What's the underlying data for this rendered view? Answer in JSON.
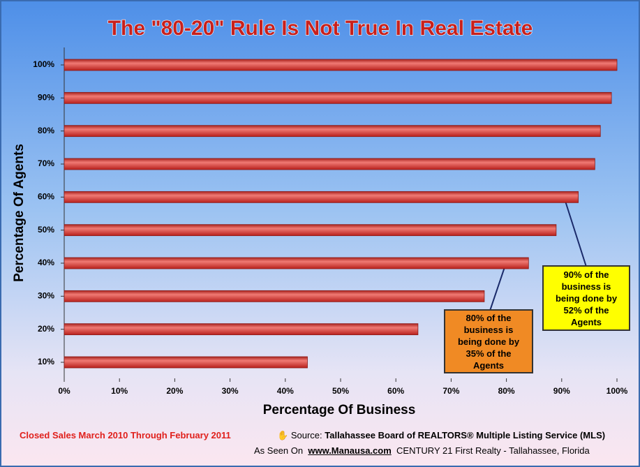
{
  "chart_data": {
    "type": "bar",
    "orientation": "horizontal",
    "title": "The \"80-20\" Rule Is Not True In Real Estate",
    "x_label": "Percentage Of Business",
    "y_label": "Percentage Of Agents",
    "categories": [
      "10%",
      "20%",
      "30%",
      "40%",
      "50%",
      "60%",
      "70%",
      "80%",
      "90%",
      "100%"
    ],
    "values": [
      44,
      64,
      76,
      84,
      89,
      93,
      96,
      97,
      99,
      100
    ],
    "color": "#d9403c",
    "xlim": [
      0,
      100
    ],
    "xticks": [
      {
        "value": 0,
        "label": "0%"
      },
      {
        "value": 10,
        "label": "10%"
      },
      {
        "value": 20,
        "label": "20%"
      },
      {
        "value": 30,
        "label": "30%"
      },
      {
        "value": 40,
        "label": "40%"
      },
      {
        "value": 50,
        "label": "50%"
      },
      {
        "value": 60,
        "label": "60%"
      },
      {
        "value": 70,
        "label": "70%"
      },
      {
        "value": 80,
        "label": "80%"
      },
      {
        "value": 90,
        "label": "90%"
      },
      {
        "value": 100,
        "label": "100%"
      }
    ],
    "annotations": [
      {
        "text": "80% of the business is being done by 35% of the Agents",
        "color": "#f08a24"
      },
      {
        "text": "90% of the business is being done by 52% of the Agents",
        "color": "#ffff00"
      }
    ],
    "footer": {
      "period": "Closed Sales March 2010 Through February 2011",
      "source_prefix": "Source:",
      "source": "Tallahassee Board of REALTORS® Multiple Listing Service (MLS)",
      "seen_prefix": "As Seen On",
      "website": "www.Manausa.com",
      "company": "CENTURY 21 First Realty - Tallahassee, Florida"
    }
  }
}
